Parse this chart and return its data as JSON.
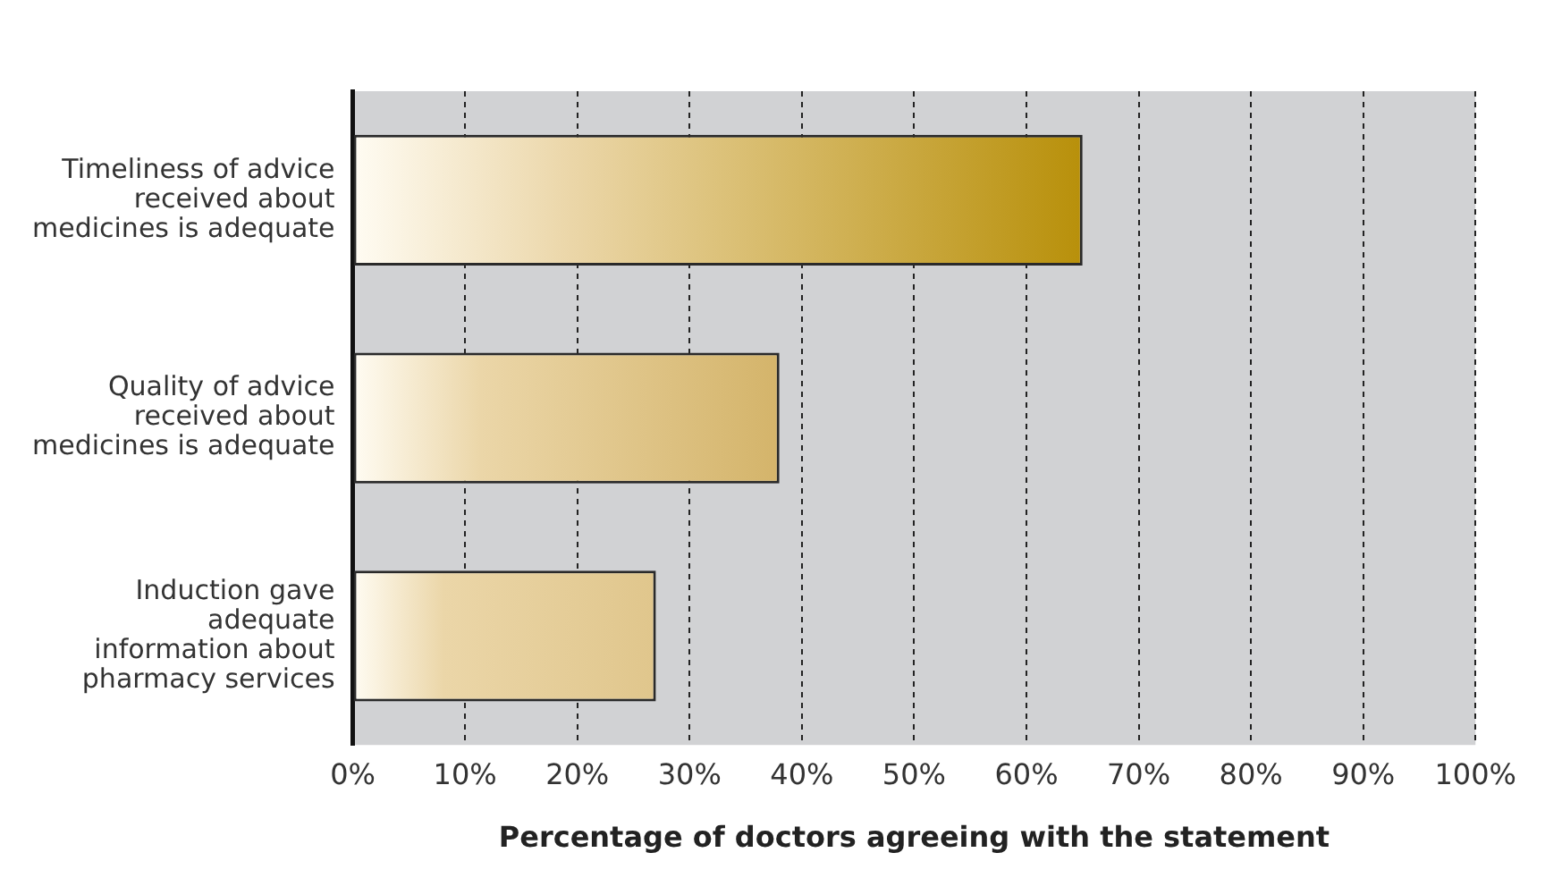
{
  "chart_data": {
    "type": "bar",
    "orientation": "horizontal",
    "xlabel": "Percentage of doctors agreeing with the statement",
    "categories": [
      "Timeliness of advice\nreceived about\nmedicines is adequate",
      "Quality of advice\nreceived about\nmedicines is adequate",
      "Induction gave\nadequate\ninformation about\npharmacy services"
    ],
    "values": [
      65,
      38,
      27
    ],
    "colors": [
      "#b8900a",
      "#d4b46a",
      "#e0c68c"
    ],
    "xlim": [
      0,
      100
    ],
    "xticks": [
      {
        "value": 0,
        "label": "0%"
      },
      {
        "value": 10,
        "label": "10%"
      },
      {
        "value": 20,
        "label": "20%"
      },
      {
        "value": 30,
        "label": "30%"
      },
      {
        "value": 40,
        "label": "40%"
      },
      {
        "value": 50,
        "label": "50%"
      },
      {
        "value": 60,
        "label": "60%"
      },
      {
        "value": 70,
        "label": "70%"
      },
      {
        "value": 80,
        "label": "80%"
      },
      {
        "value": 90,
        "label": "90%"
      },
      {
        "value": 100,
        "label": "100%"
      }
    ],
    "grid": "x",
    "legend": false
  }
}
